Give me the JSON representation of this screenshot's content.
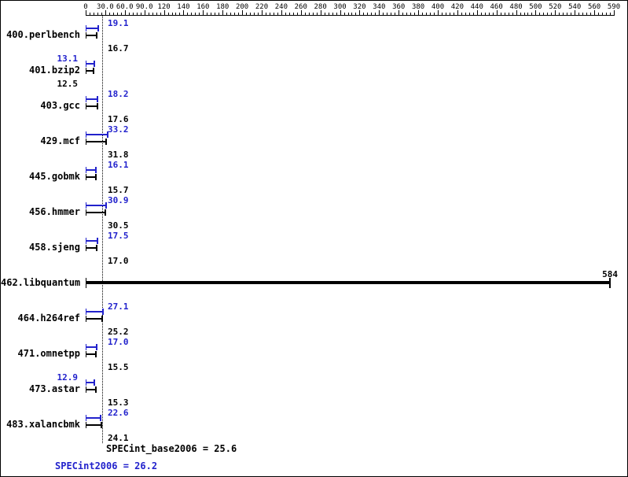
{
  "chart_data": {
    "type": "bar",
    "orientation": "horizontal",
    "title": "",
    "axis": {
      "position": "top",
      "tick_labels": [
        "0",
        "30.0",
        "60.0",
        "90.0",
        "120",
        "140",
        "160",
        "180",
        "200",
        "220",
        "240",
        "260",
        "280",
        "300",
        "320",
        "340",
        "360",
        "380",
        "400",
        "420",
        "440",
        "460",
        "480",
        "500",
        "520",
        "540",
        "560",
        "590"
      ],
      "tick_values": [
        0,
        30,
        60,
        90,
        120,
        140,
        160,
        180,
        200,
        220,
        240,
        260,
        280,
        300,
        320,
        340,
        360,
        380,
        400,
        420,
        440,
        460,
        480,
        500,
        520,
        540,
        560,
        590
      ],
      "xlim": [
        0,
        590
      ],
      "grid": false
    },
    "benchmarks": [
      {
        "name": "400.perlbench",
        "peak": 19.1,
        "base": 16.7,
        "labels": {
          "peak": "19.1",
          "base": "16.7"
        }
      },
      {
        "name": "401.bzip2",
        "peak": 13.1,
        "base": 12.5,
        "labels": {
          "peak": "13.1",
          "base": "12.5"
        }
      },
      {
        "name": "403.gcc",
        "peak": 18.2,
        "base": 17.6,
        "labels": {
          "peak": "18.2",
          "base": "17.6"
        }
      },
      {
        "name": "429.mcf",
        "peak": 33.2,
        "base": 31.8,
        "labels": {
          "peak": "33.2",
          "base": "31.8"
        }
      },
      {
        "name": "445.gobmk",
        "peak": 16.1,
        "base": 15.7,
        "labels": {
          "peak": "16.1",
          "base": "15.7"
        }
      },
      {
        "name": "456.hmmer",
        "peak": 30.9,
        "base": 30.5,
        "labels": {
          "peak": "30.9",
          "base": "30.5"
        }
      },
      {
        "name": "458.sjeng",
        "peak": 17.5,
        "base": 17.0,
        "labels": {
          "peak": "17.5",
          "base": "17.0"
        }
      },
      {
        "name": "462.libquantum",
        "peak": 584,
        "base": 584,
        "labels": {
          "peak": "",
          "base": "584"
        }
      },
      {
        "name": "464.h264ref",
        "peak": 27.1,
        "base": 25.2,
        "labels": {
          "peak": "27.1",
          "base": "25.2"
        }
      },
      {
        "name": "471.omnetpp",
        "peak": 17.0,
        "base": 15.5,
        "labels": {
          "peak": "17.0",
          "base": "15.5"
        }
      },
      {
        "name": "473.astar",
        "peak": 12.9,
        "base": 15.3,
        "labels": {
          "peak": "12.9",
          "base": "15.3"
        }
      },
      {
        "name": "483.xalancbmk",
        "peak": 22.6,
        "base": 24.1,
        "labels": {
          "peak": "22.6",
          "base": "24.1"
        }
      }
    ],
    "summary": {
      "base_mean": 25.6,
      "peak_mean": 26.2,
      "base_label": "SPECint_base2006 = 25.6",
      "peak_label": "SPECint2006 = 26.2"
    },
    "colors": {
      "peak": "#2222cc",
      "base": "#000000"
    }
  }
}
